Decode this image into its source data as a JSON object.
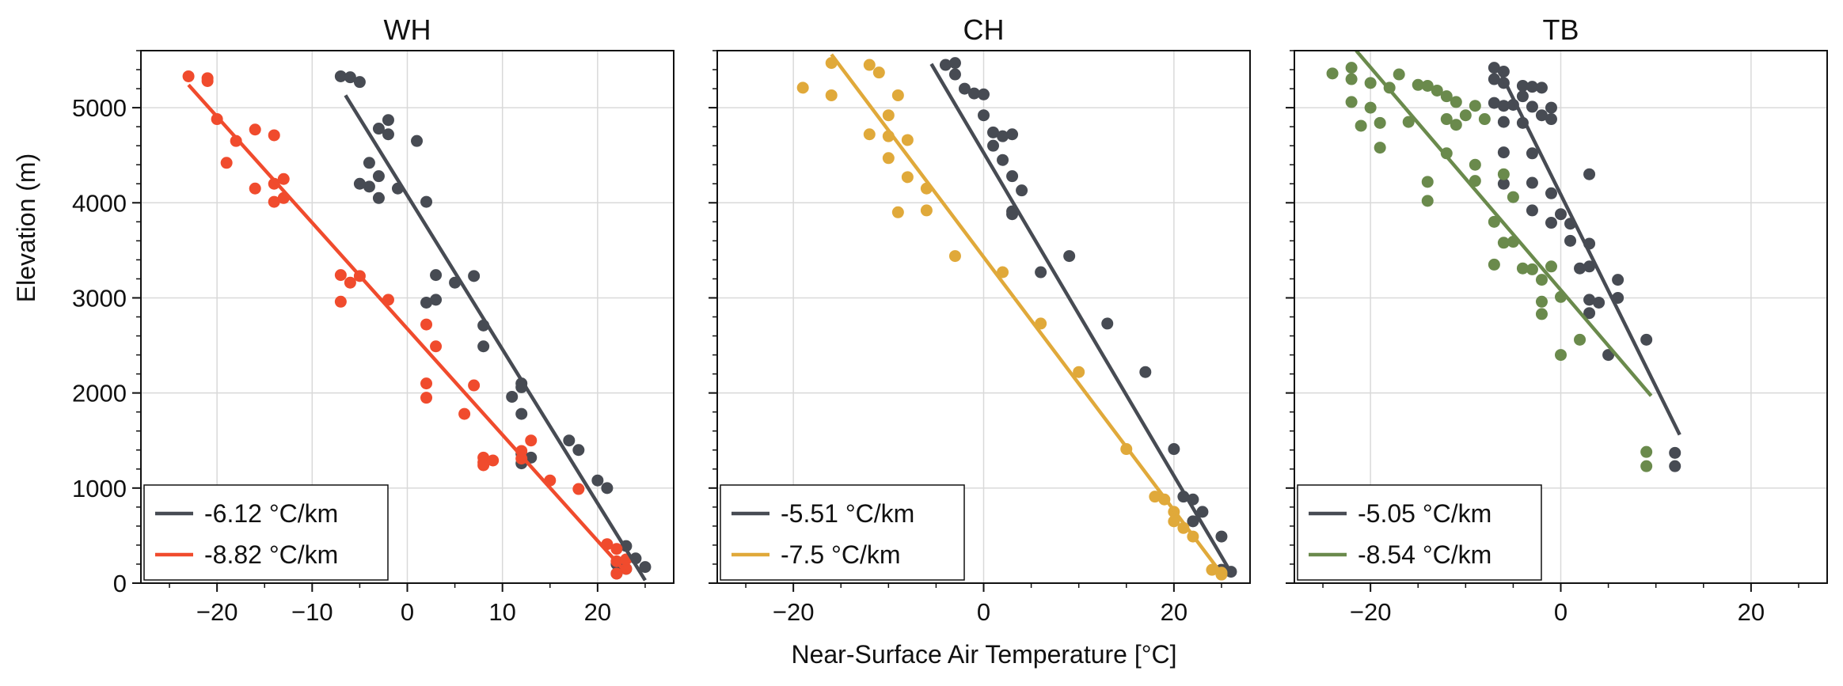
{
  "figure": {
    "xlabel": "Near-Surface Air Temperature [°C]",
    "ylabel": "Elevation (m)"
  },
  "chart_data": [
    {
      "type": "scatter",
      "title": "WH",
      "xlim": [
        -28,
        28
      ],
      "ylim": [
        0,
        5600
      ],
      "xticks": [
        -20,
        -10,
        0,
        10,
        20
      ],
      "yticks": [
        0,
        1000,
        2000,
        3000,
        4000,
        5000
      ],
      "grid": true,
      "legend_position": "bottom-left",
      "series": [
        {
          "name": "-6.12 °C/km",
          "color": "#474b53",
          "points": [
            [
              -7,
              5330
            ],
            [
              -6,
              5320
            ],
            [
              -5,
              5270
            ],
            [
              -2,
              4870
            ],
            [
              -3,
              4780
            ],
            [
              -2,
              4720
            ],
            [
              1,
              4650
            ],
            [
              -4,
              4420
            ],
            [
              -3,
              4280
            ],
            [
              -4,
              4170
            ],
            [
              -5,
              4200
            ],
            [
              -1,
              4150
            ],
            [
              -3,
              4050
            ],
            [
              2,
              4010
            ],
            [
              3,
              3240
            ],
            [
              7,
              3230
            ],
            [
              3,
              2980
            ],
            [
              2,
              2950
            ],
            [
              5,
              3160
            ],
            [
              8,
              2710
            ],
            [
              8,
              2490
            ],
            [
              12,
              2100
            ],
            [
              12,
              2060
            ],
            [
              11,
              1960
            ],
            [
              12,
              1780
            ],
            [
              17,
              1500
            ],
            [
              18,
              1400
            ],
            [
              12,
              1360
            ],
            [
              13,
              1320
            ],
            [
              12,
              1260
            ],
            [
              20,
              1080
            ],
            [
              21,
              1000
            ],
            [
              23,
              390
            ],
            [
              24,
              260
            ],
            [
              22,
              200
            ],
            [
              23,
              150
            ],
            [
              25,
              170
            ],
            [
              22,
              100
            ]
          ],
          "fit": [
            [
              -6.5,
              5130
            ],
            [
              25,
              30
            ]
          ]
        },
        {
          "name": "-8.82 °C/km",
          "color": "#f04b2d",
          "points": [
            [
              -23,
              5330
            ],
            [
              -21,
              5310
            ],
            [
              -21,
              5280
            ],
            [
              -20,
              4880
            ],
            [
              -16,
              4770
            ],
            [
              -18,
              4650
            ],
            [
              -14,
              4710
            ],
            [
              -19,
              4420
            ],
            [
              -13,
              4250
            ],
            [
              -14,
              4200
            ],
            [
              -14,
              4010
            ],
            [
              -13,
              4050
            ],
            [
              -16,
              4150
            ],
            [
              -7,
              3240
            ],
            [
              -6,
              3160
            ],
            [
              -5,
              3230
            ],
            [
              -7,
              2960
            ],
            [
              -2,
              2980
            ],
            [
              2,
              2720
            ],
            [
              3,
              2490
            ],
            [
              2,
              2100
            ],
            [
              7,
              2080
            ],
            [
              2,
              1950
            ],
            [
              6,
              1780
            ],
            [
              8,
              1320
            ],
            [
              8,
              1270
            ],
            [
              8,
              1240
            ],
            [
              9,
              1290
            ],
            [
              12,
              1390
            ],
            [
              13,
              1500
            ],
            [
              12,
              1310
            ],
            [
              15,
              1080
            ],
            [
              18,
              990
            ],
            [
              21,
              410
            ],
            [
              22,
              360
            ],
            [
              22,
              230
            ],
            [
              23,
              150
            ],
            [
              23,
              250
            ],
            [
              22,
              100
            ]
          ],
          "fit": [
            [
              -23,
              5240
            ],
            [
              23,
              110
            ]
          ]
        }
      ]
    },
    {
      "type": "scatter",
      "title": "CH",
      "xlim": [
        -28,
        28
      ],
      "ylim": [
        0,
        5600
      ],
      "xticks": [
        -20,
        0,
        20
      ],
      "yticks": [
        0,
        1000,
        2000,
        3000,
        4000,
        5000
      ],
      "grid": true,
      "legend_position": "bottom-left",
      "series": [
        {
          "name": "-5.51 °C/km",
          "color": "#474b53",
          "points": [
            [
              -4,
              5450
            ],
            [
              -3,
              5470
            ],
            [
              -3,
              5350
            ],
            [
              -2,
              5200
            ],
            [
              -1,
              5150
            ],
            [
              0,
              5140
            ],
            [
              0,
              4920
            ],
            [
              1,
              4740
            ],
            [
              2,
              4700
            ],
            [
              1,
              4600
            ],
            [
              3,
              4720
            ],
            [
              2,
              4450
            ],
            [
              3,
              4280
            ],
            [
              4,
              4130
            ],
            [
              3,
              3910
            ],
            [
              3,
              3880
            ],
            [
              9,
              3440
            ],
            [
              6,
              3270
            ],
            [
              13,
              2730
            ],
            [
              17,
              2220
            ],
            [
              20,
              1410
            ],
            [
              21,
              910
            ],
            [
              22,
              880
            ],
            [
              23,
              750
            ],
            [
              22,
              650
            ],
            [
              25,
              490
            ],
            [
              25,
              140
            ],
            [
              26,
              120
            ],
            [
              25,
              100
            ]
          ],
          "fit": [
            [
              -5.5,
              5460
            ],
            [
              26,
              110
            ]
          ]
        },
        {
          "name": "-7.5 °C/km",
          "color": "#e0a93a",
          "points": [
            [
              -16,
              5470
            ],
            [
              -12,
              5450
            ],
            [
              -11,
              5370
            ],
            [
              -19,
              5210
            ],
            [
              -16,
              5130
            ],
            [
              -9,
              5130
            ],
            [
              -10,
              4920
            ],
            [
              -12,
              4720
            ],
            [
              -10,
              4700
            ],
            [
              -8,
              4660
            ],
            [
              -10,
              4470
            ],
            [
              -8,
              4270
            ],
            [
              -6,
              4150
            ],
            [
              -6,
              3920
            ],
            [
              -9,
              3900
            ],
            [
              -3,
              3440
            ],
            [
              2,
              3270
            ],
            [
              6,
              2730
            ],
            [
              10,
              2220
            ],
            [
              15,
              1410
            ],
            [
              18,
              910
            ],
            [
              19,
              880
            ],
            [
              20,
              750
            ],
            [
              20,
              650
            ],
            [
              21,
              580
            ],
            [
              22,
              490
            ],
            [
              24,
              140
            ],
            [
              25,
              110
            ],
            [
              25,
              90
            ]
          ],
          "fit": [
            [
              -16,
              5560
            ],
            [
              25,
              100
            ]
          ]
        }
      ]
    },
    {
      "type": "scatter",
      "title": "TB",
      "xlim": [
        -28,
        28
      ],
      "ylim": [
        0,
        5600
      ],
      "xticks": [
        -20,
        0,
        20
      ],
      "yticks": [
        0,
        1000,
        2000,
        3000,
        4000,
        5000
      ],
      "grid": true,
      "legend_position": "bottom-left",
      "series": [
        {
          "name": "-5.05 °C/km",
          "color": "#474b53",
          "points": [
            [
              -7,
              5420
            ],
            [
              -6,
              5380
            ],
            [
              -7,
              5300
            ],
            [
              -6,
              5260
            ],
            [
              -4,
              5230
            ],
            [
              -3,
              5220
            ],
            [
              -2,
              5210
            ],
            [
              -4,
              5120
            ],
            [
              -5,
              5030
            ],
            [
              -6,
              5020
            ],
            [
              -7,
              5050
            ],
            [
              -3,
              5010
            ],
            [
              -1,
              5000
            ],
            [
              -2,
              4920
            ],
            [
              -1,
              4880
            ],
            [
              -4,
              4840
            ],
            [
              -6,
              4850
            ],
            [
              -6,
              4530
            ],
            [
              -3,
              4520
            ],
            [
              -6,
              4200
            ],
            [
              -3,
              4210
            ],
            [
              -1,
              4100
            ],
            [
              -3,
              3920
            ],
            [
              0,
              3880
            ],
            [
              -1,
              3790
            ],
            [
              1,
              3780
            ],
            [
              3,
              4300
            ],
            [
              1,
              3600
            ],
            [
              3,
              3570
            ],
            [
              2,
              3310
            ],
            [
              3,
              3330
            ],
            [
              3,
              2980
            ],
            [
              4,
              2950
            ],
            [
              3,
              2840
            ],
            [
              6,
              3190
            ],
            [
              6,
              3000
            ],
            [
              5,
              2400
            ],
            [
              9,
              2560
            ],
            [
              12,
              1370
            ],
            [
              12,
              1230
            ]
          ],
          "fit": [
            [
              -6.5,
              5400
            ],
            [
              12.5,
              1560
            ]
          ]
        },
        {
          "name": "-8.54 °C/km",
          "color": "#6a8a4c",
          "points": [
            [
              -24,
              5360
            ],
            [
              -22,
              5420
            ],
            [
              -22,
              5300
            ],
            [
              -20,
              5260
            ],
            [
              -18,
              5210
            ],
            [
              -17,
              5350
            ],
            [
              -15,
              5240
            ],
            [
              -14,
              5230
            ],
            [
              -13,
              5180
            ],
            [
              -12,
              5120
            ],
            [
              -11,
              5060
            ],
            [
              -9,
              5020
            ],
            [
              -8,
              4880
            ],
            [
              -10,
              4920
            ],
            [
              -12,
              4880
            ],
            [
              -11,
              4820
            ],
            [
              -20,
              5000
            ],
            [
              -19,
              4840
            ],
            [
              -21,
              4810
            ],
            [
              -16,
              4850
            ],
            [
              -22,
              5060
            ],
            [
              -19,
              4580
            ],
            [
              -12,
              4520
            ],
            [
              -9,
              4400
            ],
            [
              -9,
              4230
            ],
            [
              -14,
              4220
            ],
            [
              -14,
              4020
            ],
            [
              -6,
              4300
            ],
            [
              -5,
              4060
            ],
            [
              -7,
              3800
            ],
            [
              -6,
              3580
            ],
            [
              -5,
              3590
            ],
            [
              -7,
              3350
            ],
            [
              -4,
              3310
            ],
            [
              -3,
              3300
            ],
            [
              -1,
              3330
            ],
            [
              -2,
              3190
            ],
            [
              -2,
              2960
            ],
            [
              -2,
              2830
            ],
            [
              0,
              3010
            ],
            [
              0,
              2400
            ],
            [
              2,
              2560
            ],
            [
              9,
              1380
            ],
            [
              9,
              1230
            ]
          ],
          "fit": [
            [
              -21.5,
              5600
            ],
            [
              9.5,
              1970
            ]
          ]
        }
      ]
    }
  ]
}
